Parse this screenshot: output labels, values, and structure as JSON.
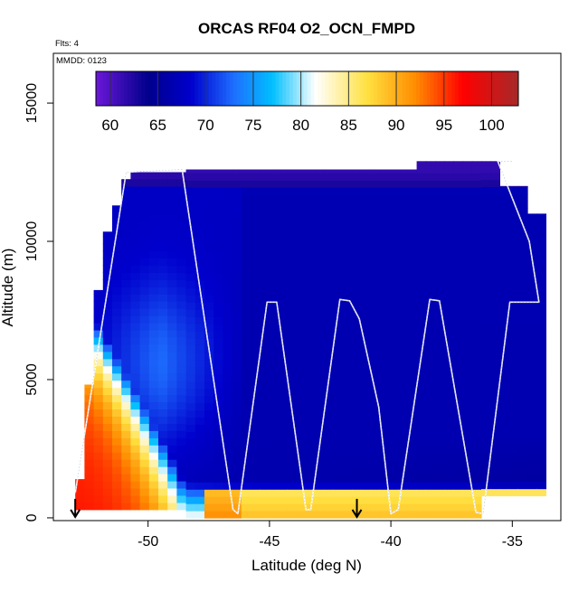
{
  "chart_data": {
    "type": "heatmap",
    "title": "ORCAS RF04 O2_OCN_FMPD",
    "subtitle_lines": [
      "Flts: 4",
      "MMDD: 0123"
    ],
    "xlabel": "Latitude (deg N)",
    "ylabel": "Altitude (m)",
    "xlim": [
      -53.9,
      -33.0
    ],
    "ylim": [
      -100,
      16800
    ],
    "x_ticks": [
      -50,
      -45,
      -40,
      -35
    ],
    "x_tick_labels": [
      "-50",
      "-45",
      "-40",
      "-35"
    ],
    "y_ticks": [
      0,
      5000,
      10000,
      15000
    ],
    "y_tick_labels": [
      "0",
      "5000",
      "10000",
      "15000"
    ],
    "grid": false,
    "colorbar": {
      "placement": "top-inside",
      "range": [
        58.5,
        102.8
      ],
      "ticks": [
        60,
        65,
        70,
        75,
        80,
        85,
        90,
        95,
        100
      ],
      "tick_labels": [
        "60",
        "65",
        "70",
        "75",
        "80",
        "85",
        "90",
        "95",
        "100"
      ],
      "colors": [
        "#6B18D8",
        "#00008B",
        "#0000CD",
        "#1E6FFF",
        "#00BFFF",
        "#FFFFFF",
        "#FFE040",
        "#FF8C00",
        "#FF0000",
        "#A52A2A"
      ],
      "color_stops": [
        58.5,
        64,
        68.5,
        73,
        77,
        81.5,
        87,
        92,
        97,
        102.8
      ]
    },
    "field": {
      "description": "gridded O2_OCN_FMPD curtain vs latitude and altitude",
      "lat_range": [
        -53.0,
        -33.7
      ],
      "alt_range": [
        0,
        13000
      ]
    },
    "flight_track": {
      "lat": [
        -53.0,
        -50.9,
        -48.6,
        -46.5,
        -46.3,
        -45.1,
        -44.7,
        -43.5,
        -43.3,
        -42.1,
        -41.7,
        -41.3,
        -40.5,
        -40.0,
        -39.7,
        -38.4,
        -38.0,
        -36.5,
        -36.2,
        -35.1,
        -33.9,
        -34.3,
        -35.6,
        -35.0
      ],
      "alt": [
        900,
        12500,
        12600,
        300,
        150,
        7800,
        7800,
        300,
        300,
        7900,
        7850,
        7200,
        4000,
        150,
        300,
        7900,
        7850,
        200,
        150,
        7800,
        7800,
        10000,
        12900,
        12900
      ]
    },
    "markers": [
      {
        "type": "down-arrow",
        "lat": -53.0,
        "alt": 0
      },
      {
        "type": "down-arrow",
        "lat": -41.4,
        "alt": 0
      }
    ]
  }
}
